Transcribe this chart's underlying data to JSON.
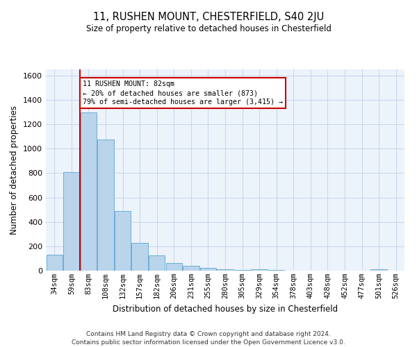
{
  "title_line1": "11, RUSHEN MOUNT, CHESTERFIELD, S40 2JU",
  "title_line2": "Size of property relative to detached houses in Chesterfield",
  "xlabel": "Distribution of detached houses by size in Chesterfield",
  "ylabel": "Number of detached properties",
  "categories": [
    "34sqm",
    "59sqm",
    "83sqm",
    "108sqm",
    "132sqm",
    "157sqm",
    "182sqm",
    "206sqm",
    "231sqm",
    "255sqm",
    "280sqm",
    "305sqm",
    "329sqm",
    "354sqm",
    "378sqm",
    "403sqm",
    "428sqm",
    "452sqm",
    "477sqm",
    "501sqm",
    "526sqm"
  ],
  "values": [
    130,
    810,
    1300,
    1075,
    490,
    230,
    125,
    65,
    38,
    22,
    13,
    5,
    12,
    5,
    2,
    2,
    2,
    2,
    2,
    12,
    2
  ],
  "bar_color": "#bad4eb",
  "bar_edge_color": "#6aaed6",
  "grid_color": "#c8d8ea",
  "background_color": "#edf3fb",
  "red_line_color": "#cc0000",
  "annotation_text_line1": "11 RUSHEN MOUNT: 82sqm",
  "annotation_text_line2": "← 20% of detached houses are smaller (873)",
  "annotation_text_line3": "79% of semi-detached houses are larger (3,415) →",
  "property_line_x": 1.5,
  "ylim": [
    0,
    1650
  ],
  "yticks": [
    0,
    200,
    400,
    600,
    800,
    1000,
    1200,
    1400,
    1600
  ],
  "footer_line1": "Contains HM Land Registry data © Crown copyright and database right 2024.",
  "footer_line2": "Contains public sector information licensed under the Open Government Licence v3.0."
}
